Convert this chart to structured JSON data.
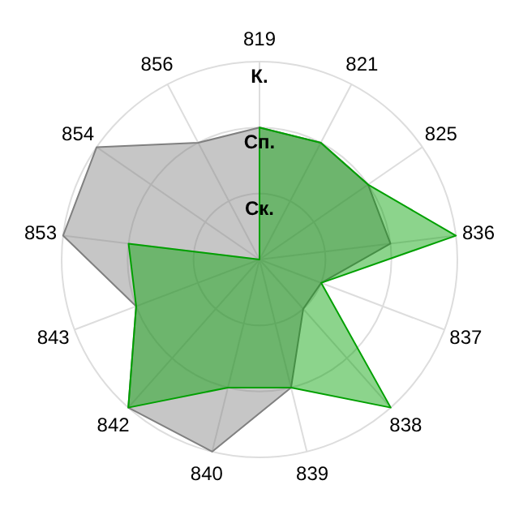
{
  "chart_data": {
    "type": "radar",
    "categories": [
      "819",
      "821",
      "825",
      "836",
      "837",
      "838",
      "839",
      "840",
      "842",
      "843",
      "853",
      "854",
      "856"
    ],
    "series": [
      {
        "color": "#808080",
        "values": [
          2,
          2,
          2,
          2,
          1,
          1,
          2,
          3,
          3,
          2,
          3,
          3,
          2
        ]
      },
      {
        "color": "#00a000",
        "values": [
          2,
          2,
          2,
          3,
          1,
          3,
          2,
          2,
          3,
          2,
          2,
          0,
          0
        ]
      }
    ],
    "ylim": [
      0,
      3
    ],
    "yticks": [
      {
        "value": 1,
        "label": "Ск."
      },
      {
        "value": 2,
        "label": "Сп."
      },
      {
        "value": 3,
        "label": "К."
      }
    ],
    "grid": true
  }
}
